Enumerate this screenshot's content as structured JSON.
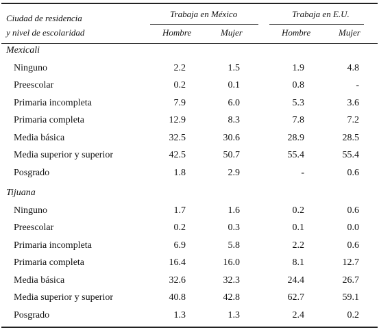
{
  "header": {
    "stub_line1": "Ciudad de residencia",
    "stub_line2": "y nivel de escolaridad",
    "group_mexico": "Trabaja en México",
    "group_us": "Trabaja en E.U.",
    "col_hombre_mx": "Hombre",
    "col_mujer_mx": "Mujer",
    "col_hombre_us": "Hombre",
    "col_mujer_us": "Mujer"
  },
  "sections": [
    {
      "name": "Mexicali",
      "rows": [
        {
          "label": "Ninguno",
          "values": [
            "2.2",
            "1.5",
            "1.9",
            "4.8"
          ]
        },
        {
          "label": "Preescolar",
          "values": [
            "0.2",
            "0.1",
            "0.8",
            "-"
          ]
        },
        {
          "label": "Primaria incompleta",
          "values": [
            "7.9",
            "6.0",
            "5.3",
            "3.6"
          ]
        },
        {
          "label": "Primaria completa",
          "values": [
            "12.9",
            "8.3",
            "7.8",
            "7.2"
          ]
        },
        {
          "label": "Media básica",
          "values": [
            "32.5",
            "30.6",
            "28.9",
            "28.5"
          ]
        },
        {
          "label": "Media superior y superior",
          "values": [
            "42.5",
            "50.7",
            "55.4",
            "55.4"
          ]
        },
        {
          "label": "Posgrado",
          "values": [
            "1.8",
            "2.9",
            "-",
            "0.6"
          ]
        }
      ]
    },
    {
      "name": "Tijuana",
      "rows": [
        {
          "label": "Ninguno",
          "values": [
            "1.7",
            "1.6",
            "0.2",
            "0.6"
          ]
        },
        {
          "label": "Preescolar",
          "values": [
            "0.2",
            "0.3",
            "0.1",
            "0.0"
          ]
        },
        {
          "label": "Primaria incompleta",
          "values": [
            "6.9",
            "5.8",
            "2.2",
            "0.6"
          ]
        },
        {
          "label": "Primaria completa",
          "values": [
            "16.4",
            "16.0",
            "8.1",
            "12.7"
          ]
        },
        {
          "label": "Media básica",
          "values": [
            "32.6",
            "32.3",
            "24.4",
            "26.7"
          ]
        },
        {
          "label": "Media superior y superior",
          "values": [
            "40.8",
            "42.8",
            "62.7",
            "59.1"
          ]
        },
        {
          "label": "Posgrado",
          "values": [
            "1.3",
            "1.3",
            "2.4",
            "0.2"
          ]
        }
      ]
    }
  ]
}
